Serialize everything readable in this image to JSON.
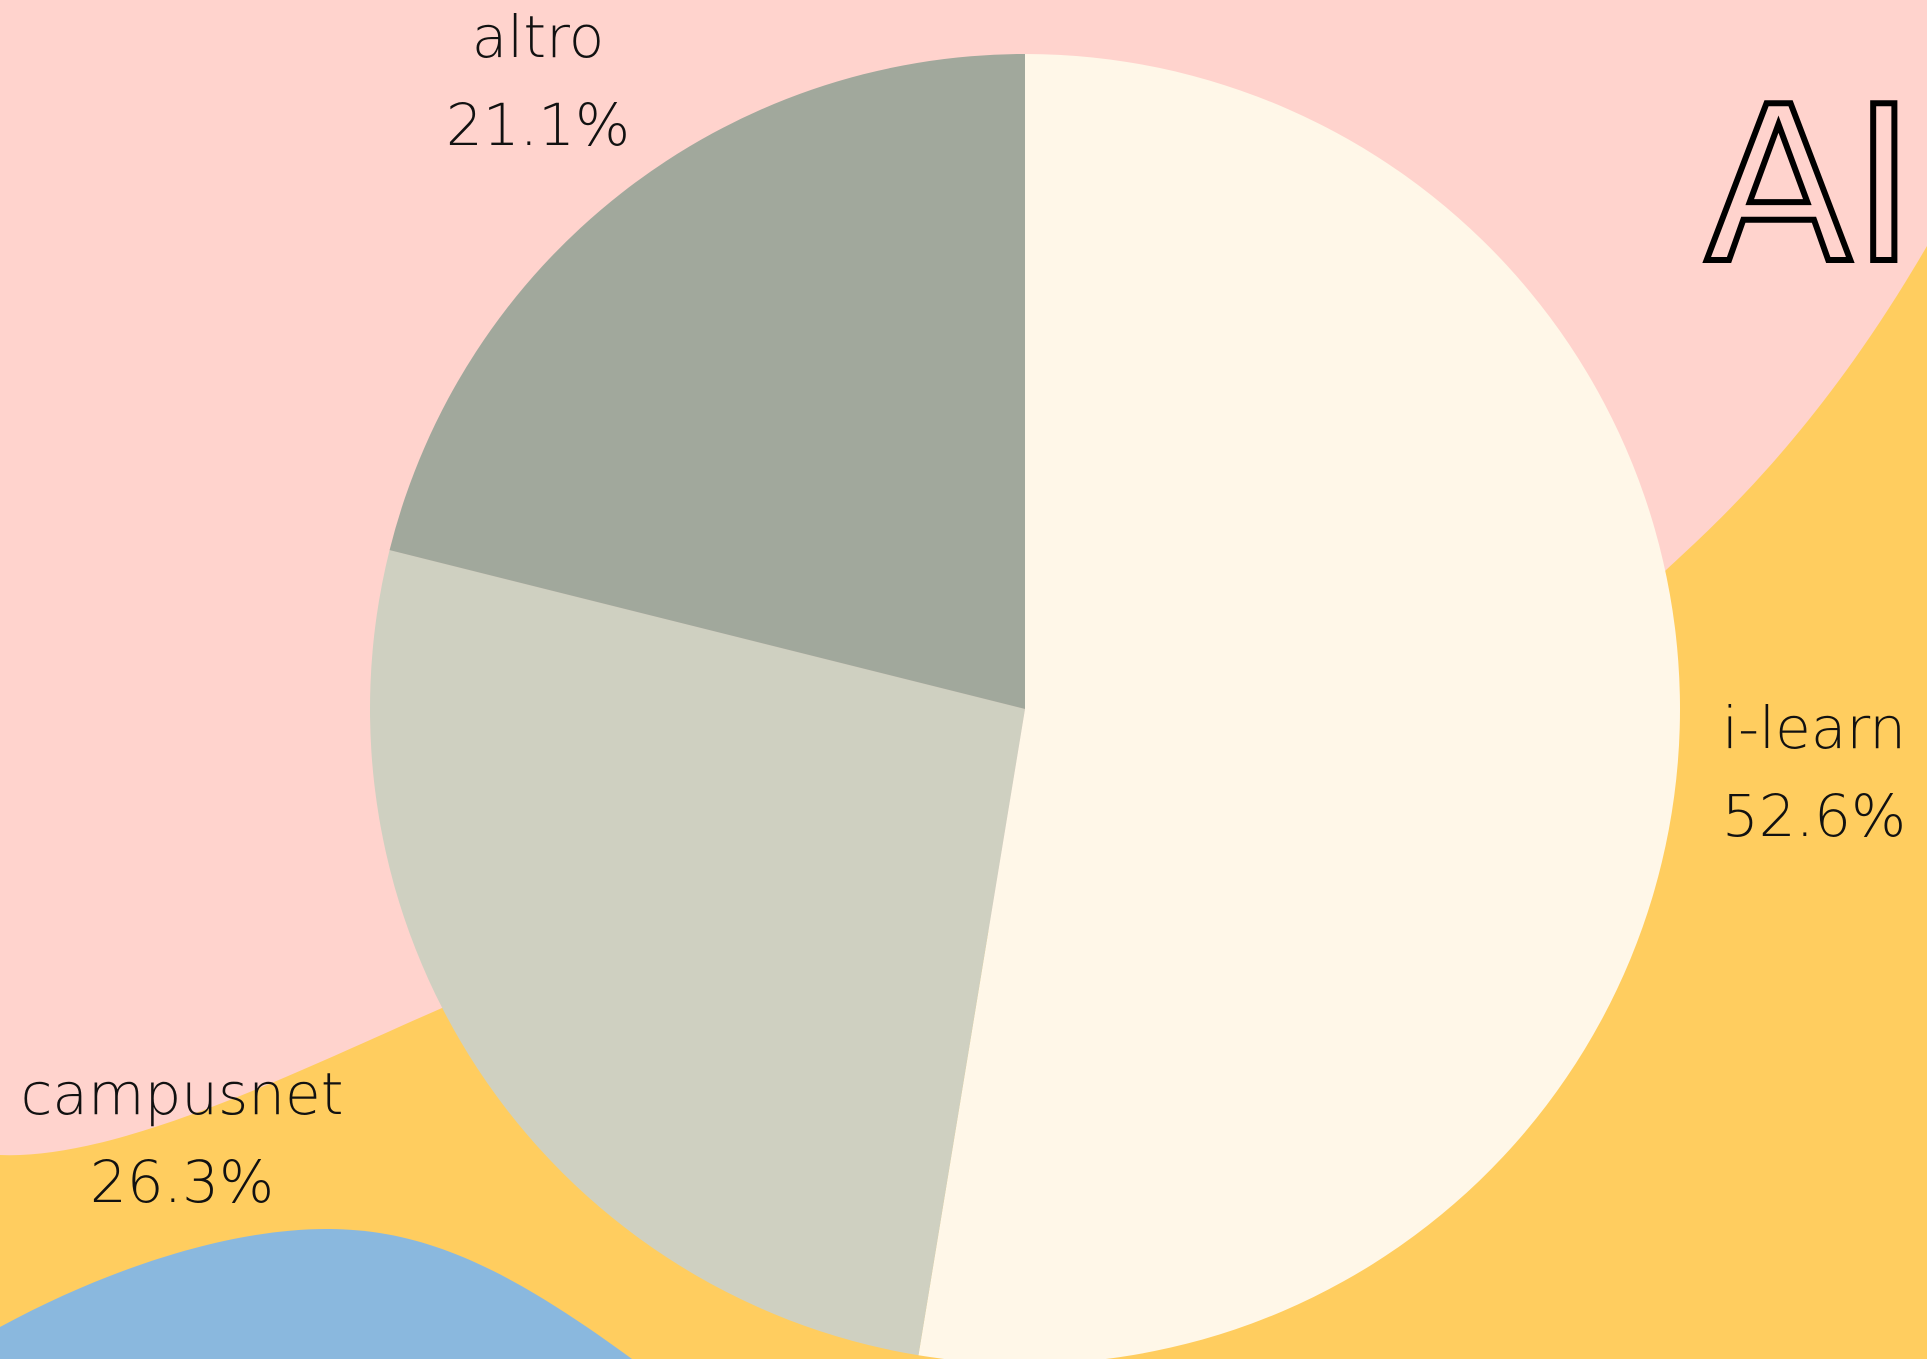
{
  "chart_data": {
    "type": "pie",
    "title": "AI",
    "categories": [
      "i-learn",
      "campusnet",
      "altro"
    ],
    "values": [
      52.6,
      26.3,
      21.1
    ],
    "value_labels": [
      "52.6%",
      "26.3%",
      "21.1%"
    ],
    "colors": [
      "#fff7e8",
      "#cfd0c1",
      "#a1a89c"
    ]
  }
}
